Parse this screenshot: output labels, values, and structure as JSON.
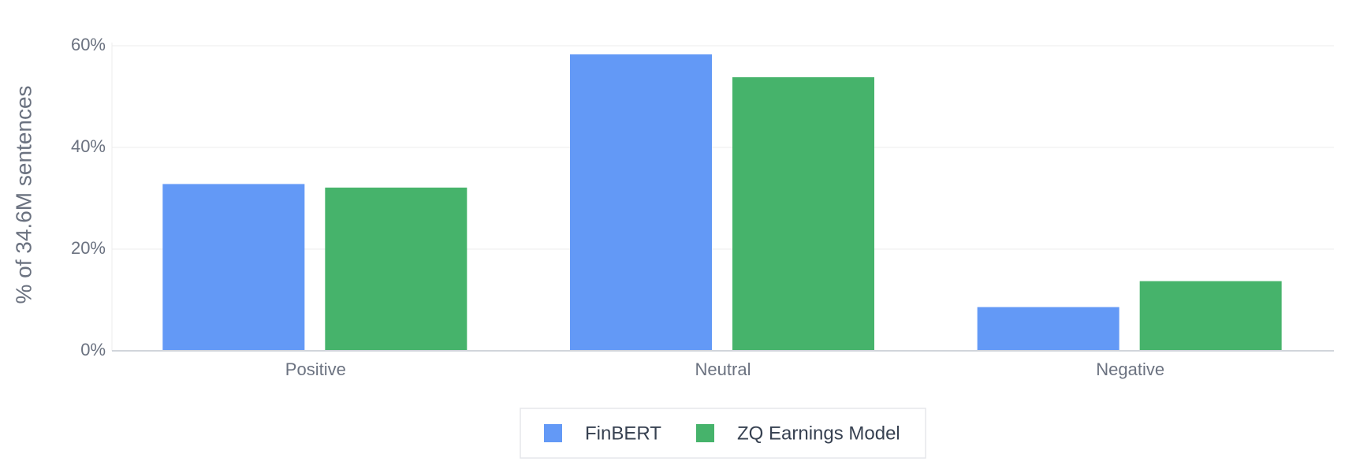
{
  "chart_data": {
    "type": "bar",
    "y_label": "% of 34.6M sentences",
    "categories": [
      "Positive",
      "Neutral",
      "Negative"
    ],
    "series": [
      {
        "name": "FinBERT",
        "color": "#6399f6",
        "values": [
          32.8,
          58.3,
          8.6
        ]
      },
      {
        "name": "ZQ Earnings Model",
        "color": "#46b36b",
        "values": [
          32.1,
          53.8,
          13.7
        ]
      }
    ],
    "ylim": [
      0,
      60
    ],
    "yticks": [
      {
        "value": 0,
        "label": "0%"
      },
      {
        "value": 20,
        "label": "20%"
      },
      {
        "value": 40,
        "label": "40%"
      },
      {
        "value": 60,
        "label": "60%"
      }
    ],
    "grid": true,
    "legend": "bottom"
  }
}
